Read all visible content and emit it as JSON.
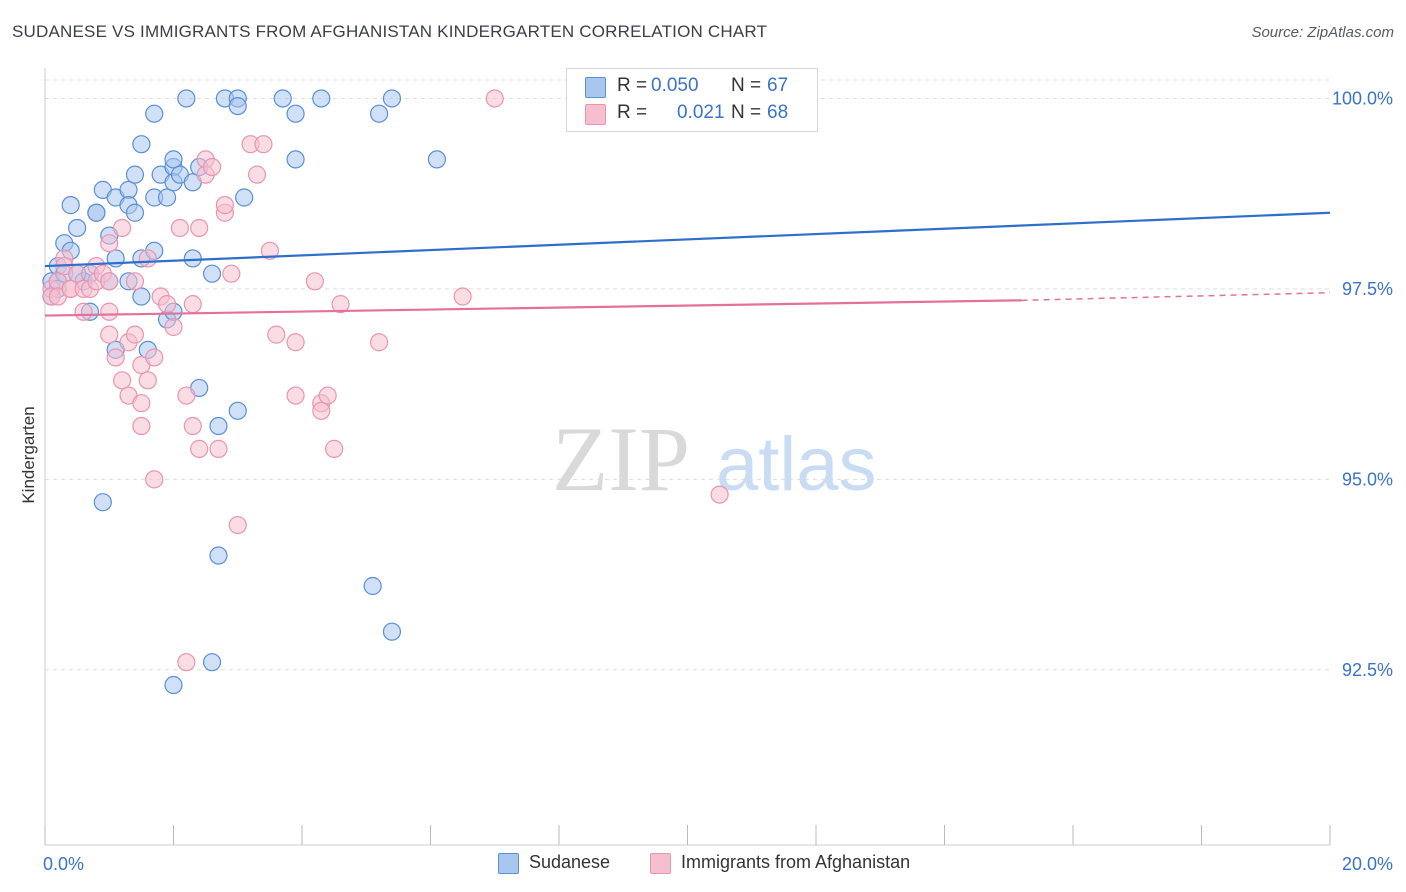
{
  "header": {
    "title": "SUDANESE VS IMMIGRANTS FROM AFGHANISTAN KINDERGARTEN CORRELATION CHART",
    "source": "Source: ZipAtlas.com"
  },
  "colors": {
    "blue_fill": "#a9c6ef",
    "blue_stroke": "#5b8fd6",
    "blue_line": "#2f6fcc",
    "pink_fill": "#f6bfd0",
    "pink_stroke": "#e995b0",
    "pink_line": "#e5709a",
    "tick_label": "#3a73c7",
    "grid": "#dddddd"
  },
  "legend": {
    "rows": [
      {
        "r_label": "R =",
        "r_value": "0.050",
        "n_label": "N =",
        "n_value": "67"
      },
      {
        "r_label": "R =",
        "r_value": "0.021",
        "n_label": "N =",
        "n_value": "68"
      }
    ]
  },
  "bottom_legend": {
    "sudanese": "Sudanese",
    "afghan": "Immigrants from Afghanistan"
  },
  "watermark": {
    "zip": "ZIP",
    "atlas": "atlas"
  },
  "chart_data": {
    "type": "scatter",
    "title": "SUDANESE VS IMMIGRANTS FROM AFGHANISTAN KINDERGARTEN CORRELATION CHART",
    "xlabel": "",
    "ylabel": "Kindergarten",
    "xlim": [
      0,
      20
    ],
    "ylim": [
      90.2,
      100.4
    ],
    "x_ticks": [
      0,
      2,
      4,
      6,
      8,
      10,
      12,
      14,
      16,
      18,
      20
    ],
    "x_tick_labels": {
      "min": "0.0%",
      "max": "20.0%"
    },
    "y_ticks": [
      92.5,
      95.0,
      97.5,
      100.0
    ],
    "y_tick_labels": [
      "92.5%",
      "95.0%",
      "97.5%",
      "100.0%"
    ],
    "grid": true,
    "series": [
      {
        "name": "Sudanese",
        "r": 0.05,
        "n": 67,
        "trend": {
          "x": [
            0,
            20
          ],
          "y": [
            97.8,
            98.5
          ]
        },
        "points": [
          [
            0.1,
            97.6
          ],
          [
            0.1,
            97.4
          ],
          [
            0.2,
            97.8
          ],
          [
            0.2,
            97.6
          ],
          [
            0.2,
            97.5
          ],
          [
            0.3,
            98.1
          ],
          [
            0.3,
            97.7
          ],
          [
            0.4,
            98.0
          ],
          [
            0.4,
            98.6
          ],
          [
            0.5,
            98.3
          ],
          [
            0.5,
            97.7
          ],
          [
            0.6,
            97.6
          ],
          [
            0.7,
            97.2
          ],
          [
            0.7,
            97.7
          ],
          [
            0.8,
            98.5
          ],
          [
            0.8,
            98.5
          ],
          [
            0.9,
            98.8
          ],
          [
            1.0,
            98.2
          ],
          [
            1.0,
            97.6
          ],
          [
            1.1,
            98.7
          ],
          [
            1.1,
            96.7
          ],
          [
            1.1,
            97.9
          ],
          [
            1.3,
            98.8
          ],
          [
            1.3,
            97.6
          ],
          [
            1.3,
            98.6
          ],
          [
            1.4,
            99.0
          ],
          [
            1.4,
            98.5
          ],
          [
            1.5,
            97.4
          ],
          [
            1.5,
            97.9
          ],
          [
            1.5,
            99.4
          ],
          [
            1.6,
            96.7
          ],
          [
            1.7,
            98.7
          ],
          [
            1.7,
            99.8
          ],
          [
            1.7,
            98.0
          ],
          [
            1.8,
            99.0
          ],
          [
            1.9,
            98.7
          ],
          [
            1.9,
            97.1
          ],
          [
            2.0,
            99.1
          ],
          [
            2.0,
            98.9
          ],
          [
            2.0,
            99.2
          ],
          [
            2.0,
            97.2
          ],
          [
            2.1,
            99.0
          ],
          [
            2.2,
            100.0
          ],
          [
            2.3,
            98.9
          ],
          [
            2.3,
            97.9
          ],
          [
            2.4,
            99.1
          ],
          [
            2.4,
            96.2
          ],
          [
            2.6,
            97.7
          ],
          [
            2.7,
            95.7
          ],
          [
            2.8,
            100.0
          ],
          [
            3.0,
            100.0
          ],
          [
            3.0,
            95.9
          ],
          [
            3.0,
            99.9
          ],
          [
            3.1,
            98.7
          ],
          [
            3.7,
            100.0
          ],
          [
            3.9,
            99.8
          ],
          [
            3.9,
            99.2
          ],
          [
            4.3,
            100.0
          ],
          [
            5.2,
            99.8
          ],
          [
            5.4,
            100.0
          ],
          [
            6.1,
            99.2
          ],
          [
            2.7,
            94.0
          ],
          [
            0.9,
            94.7
          ],
          [
            5.1,
            93.6
          ],
          [
            5.4,
            93.0
          ],
          [
            2.6,
            92.6
          ],
          [
            2.0,
            92.3
          ]
        ]
      },
      {
        "name": "Immigrants from Afghanistan",
        "r": 0.021,
        "n": 68,
        "trend": {
          "x": [
            0,
            15.2
          ],
          "y": [
            97.15,
            97.35
          ]
        },
        "trend_dashed": {
          "x": [
            15.2,
            20
          ],
          "y": [
            97.35,
            97.45
          ]
        },
        "points": [
          [
            0.1,
            97.5
          ],
          [
            0.1,
            97.4
          ],
          [
            0.2,
            97.6
          ],
          [
            0.2,
            97.4
          ],
          [
            0.3,
            97.9
          ],
          [
            0.3,
            97.8
          ],
          [
            0.4,
            97.5
          ],
          [
            0.4,
            97.5
          ],
          [
            0.5,
            97.7
          ],
          [
            0.6,
            97.5
          ],
          [
            0.6,
            97.2
          ],
          [
            0.7,
            97.5
          ],
          [
            0.8,
            97.8
          ],
          [
            0.8,
            97.6
          ],
          [
            0.9,
            97.7
          ],
          [
            1.0,
            97.2
          ],
          [
            1.0,
            97.6
          ],
          [
            1.0,
            98.1
          ],
          [
            1.0,
            96.9
          ],
          [
            1.1,
            96.6
          ],
          [
            1.2,
            98.3
          ],
          [
            1.2,
            96.3
          ],
          [
            1.3,
            96.1
          ],
          [
            1.3,
            96.8
          ],
          [
            1.4,
            97.6
          ],
          [
            1.4,
            96.9
          ],
          [
            1.5,
            96.5
          ],
          [
            1.5,
            96.0
          ],
          [
            1.5,
            95.7
          ],
          [
            1.6,
            96.3
          ],
          [
            1.6,
            97.9
          ],
          [
            1.7,
            96.6
          ],
          [
            1.7,
            95.0
          ],
          [
            1.8,
            97.4
          ],
          [
            1.9,
            97.3
          ],
          [
            2.0,
            97.0
          ],
          [
            2.1,
            98.3
          ],
          [
            2.2,
            96.1
          ],
          [
            2.3,
            95.7
          ],
          [
            2.3,
            97.3
          ],
          [
            2.4,
            95.4
          ],
          [
            2.4,
            98.3
          ],
          [
            2.5,
            99.2
          ],
          [
            2.5,
            99.0
          ],
          [
            2.6,
            99.1
          ],
          [
            2.7,
            95.4
          ],
          [
            2.8,
            98.5
          ],
          [
            2.8,
            98.6
          ],
          [
            2.9,
            97.7
          ],
          [
            3.2,
            99.4
          ],
          [
            3.3,
            99.0
          ],
          [
            3.4,
            99.4
          ],
          [
            3.5,
            98.0
          ],
          [
            3.6,
            96.9
          ],
          [
            3.9,
            96.1
          ],
          [
            3.9,
            96.8
          ],
          [
            4.2,
            97.6
          ],
          [
            4.3,
            96.0
          ],
          [
            4.3,
            95.9
          ],
          [
            4.4,
            96.1
          ],
          [
            4.5,
            95.4
          ],
          [
            4.6,
            97.3
          ],
          [
            5.2,
            96.8
          ],
          [
            6.5,
            97.4
          ],
          [
            7.0,
            100.0
          ],
          [
            10.5,
            94.8
          ],
          [
            2.2,
            92.6
          ],
          [
            3.0,
            94.4
          ]
        ]
      }
    ]
  }
}
